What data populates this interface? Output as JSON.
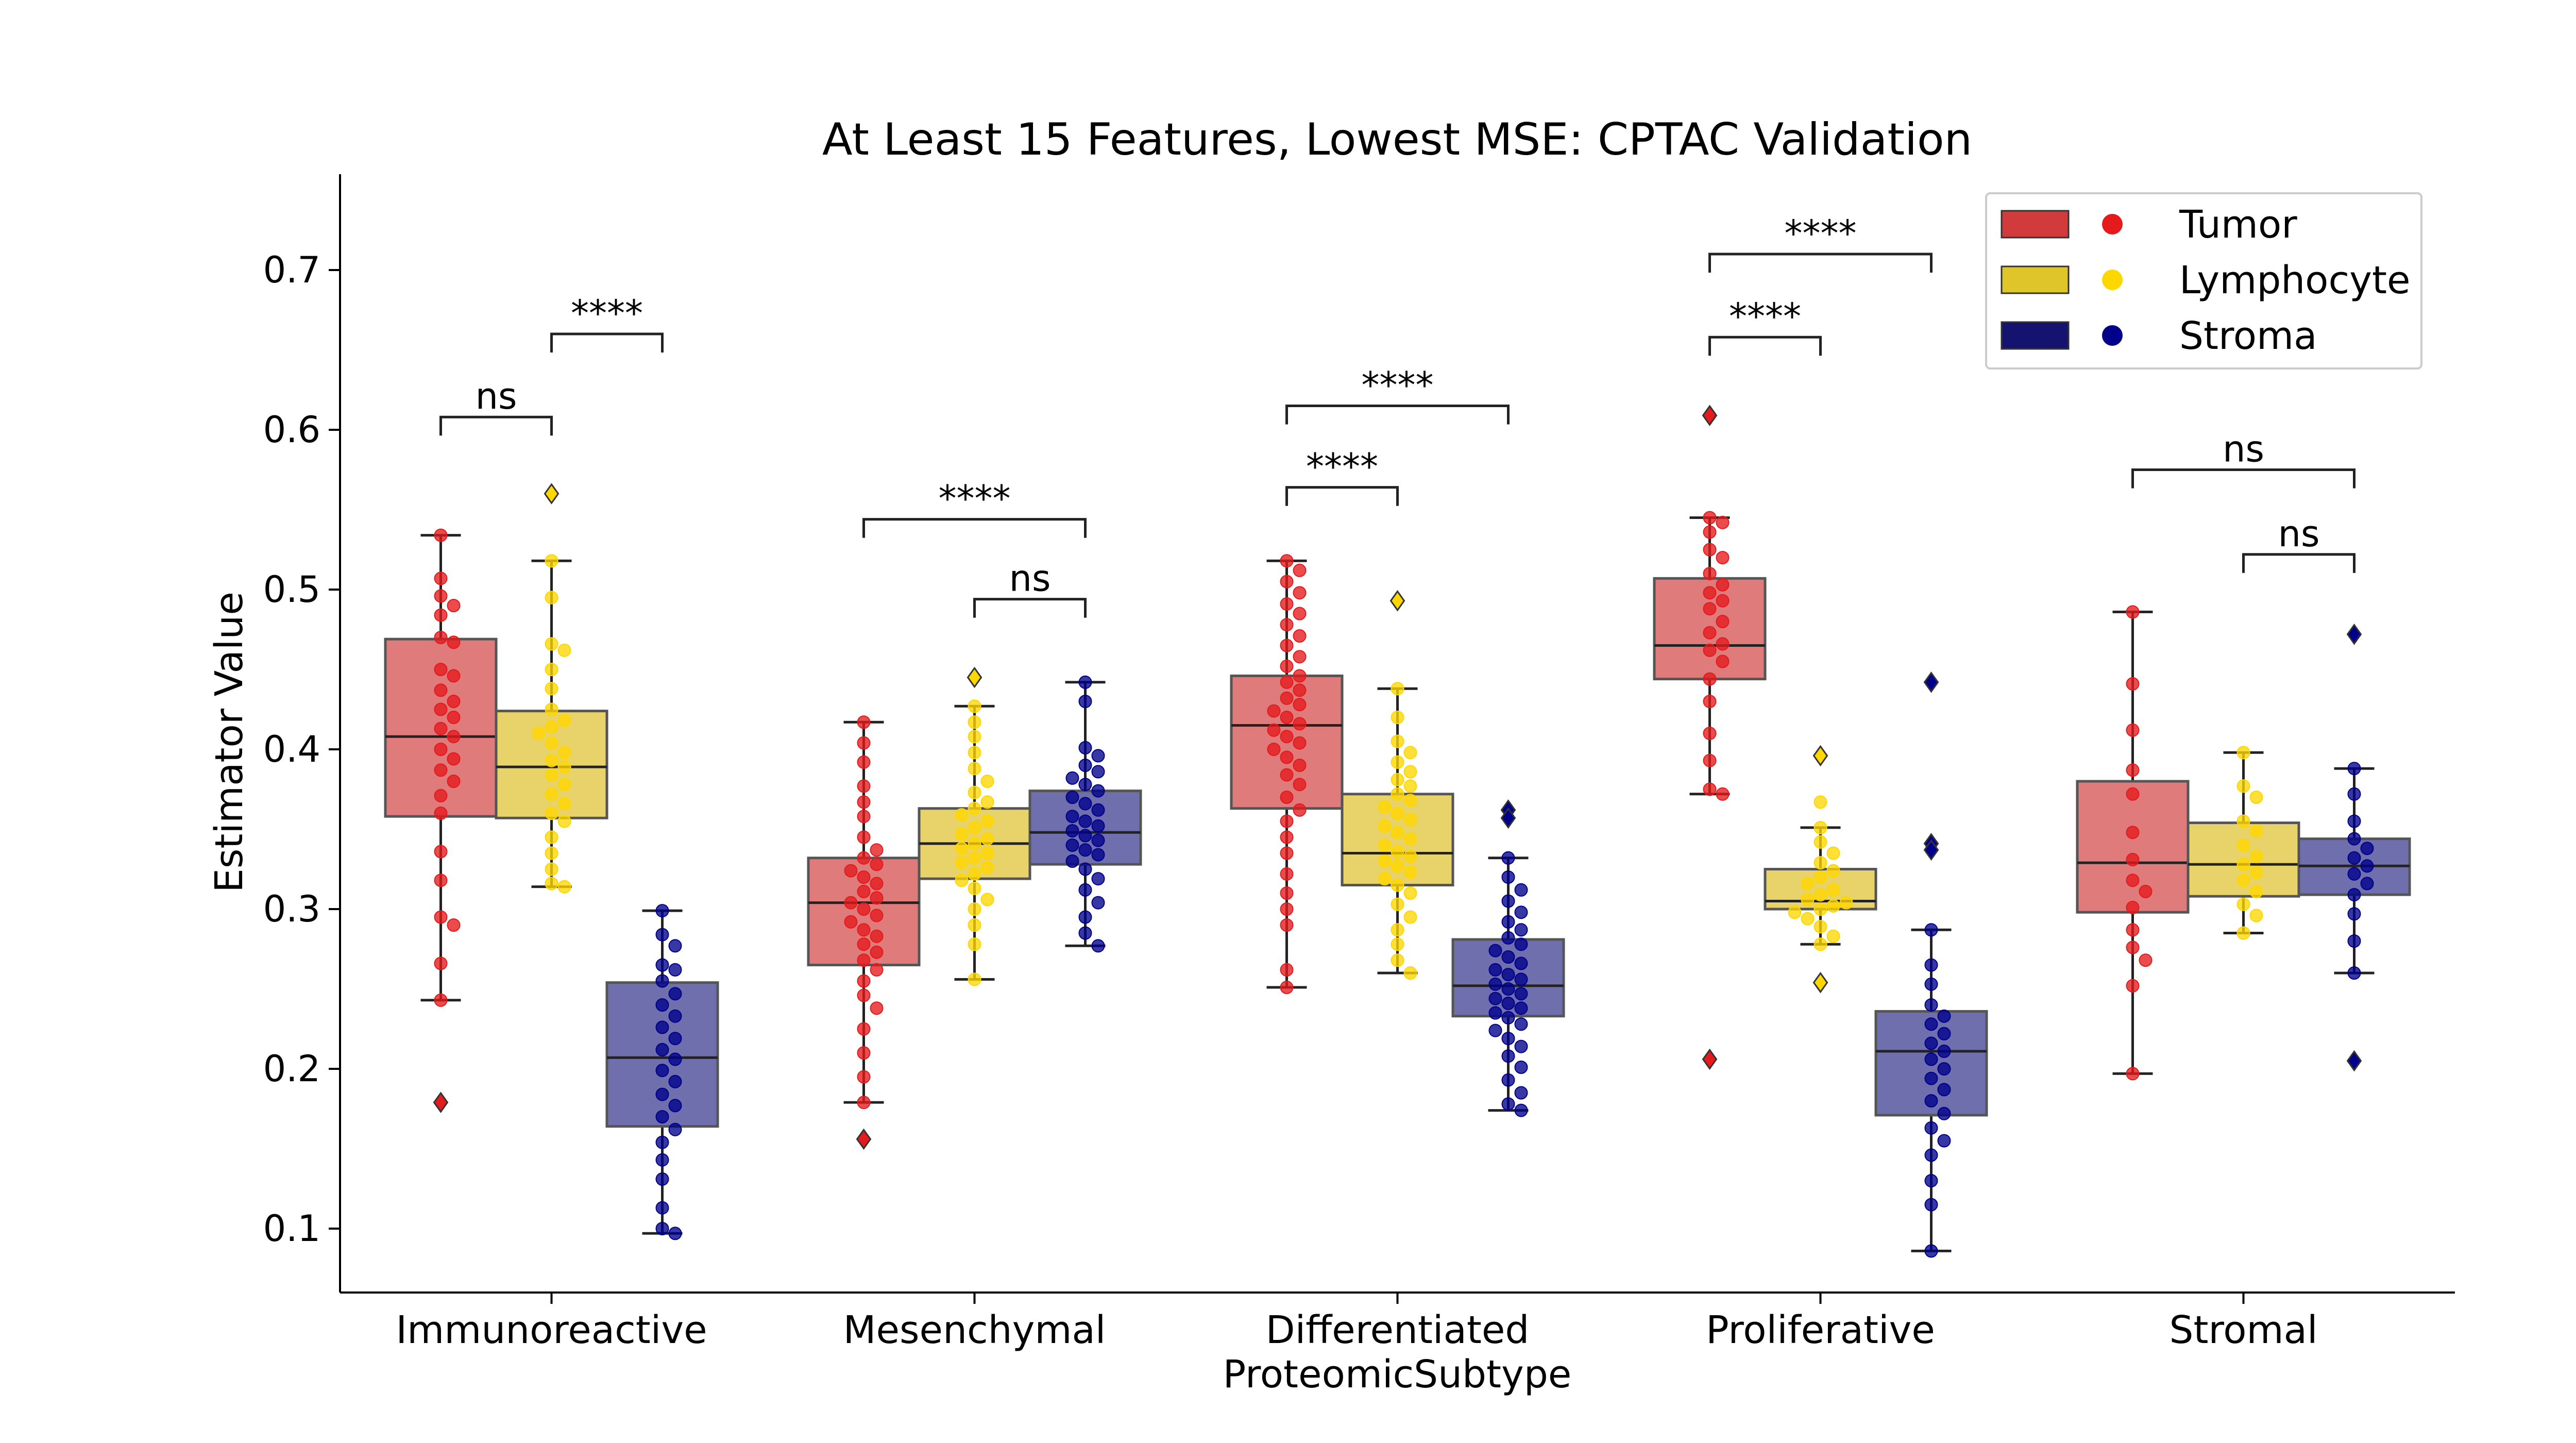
{
  "chart_data": {
    "type": "box",
    "title": "At Least 15 Features, Lowest MSE: CPTAC Validation",
    "xlabel": "ProteomicSubtype",
    "ylabel": "Estimator Value",
    "ylim": [
      0.06,
      0.76
    ],
    "yticks": [
      0.1,
      0.2,
      0.3,
      0.4,
      0.5,
      0.6,
      0.7
    ],
    "ytick_labels": [
      "0.1",
      "0.2",
      "0.3",
      "0.4",
      "0.5",
      "0.6",
      "0.7"
    ],
    "categories": [
      "Immunoreactive",
      "Mesenchymal",
      "Differentiated",
      "Proliferative",
      "Stromal"
    ],
    "legend_placement": "top-right",
    "grid": false,
    "series": [
      {
        "name": "Tumor",
        "box_color": "#e07b7b",
        "point_color": "#e41a1c",
        "boxes": [
          {
            "q1": 0.358,
            "median": 0.408,
            "q3": 0.469,
            "whisker_low": 0.243,
            "whisker_high": 0.534,
            "outliers": [
              0.179
            ],
            "points": [
              0.534,
              0.507,
              0.496,
              0.49,
              0.484,
              0.47,
              0.467,
              0.45,
              0.446,
              0.437,
              0.43,
              0.425,
              0.42,
              0.413,
              0.408,
              0.4,
              0.394,
              0.387,
              0.38,
              0.371,
              0.36,
              0.336,
              0.318,
              0.295,
              0.29,
              0.266,
              0.243
            ]
          },
          {
            "q1": 0.265,
            "median": 0.304,
            "q3": 0.332,
            "whisker_low": 0.179,
            "whisker_high": 0.417,
            "outliers": [
              0.156
            ],
            "points": [
              0.417,
              0.404,
              0.392,
              0.377,
              0.367,
              0.358,
              0.345,
              0.337,
              0.332,
              0.328,
              0.324,
              0.32,
              0.316,
              0.311,
              0.307,
              0.304,
              0.3,
              0.296,
              0.292,
              0.287,
              0.283,
              0.278,
              0.273,
              0.268,
              0.262,
              0.255,
              0.246,
              0.238,
              0.225,
              0.21,
              0.195,
              0.179
            ]
          },
          {
            "q1": 0.363,
            "median": 0.415,
            "q3": 0.446,
            "whisker_low": 0.251,
            "whisker_high": 0.518,
            "outliers": [],
            "points": [
              0.518,
              0.512,
              0.505,
              0.498,
              0.491,
              0.485,
              0.478,
              0.471,
              0.465,
              0.458,
              0.452,
              0.446,
              0.442,
              0.437,
              0.432,
              0.428,
              0.424,
              0.42,
              0.416,
              0.412,
              0.408,
              0.404,
              0.4,
              0.395,
              0.39,
              0.384,
              0.378,
              0.37,
              0.362,
              0.355,
              0.345,
              0.335,
              0.322,
              0.31,
              0.3,
              0.29,
              0.262,
              0.251
            ]
          },
          {
            "q1": 0.444,
            "median": 0.465,
            "q3": 0.507,
            "whisker_low": 0.372,
            "whisker_high": 0.545,
            "outliers": [
              0.609,
              0.206
            ],
            "points": [
              0.545,
              0.542,
              0.536,
              0.525,
              0.52,
              0.51,
              0.503,
              0.498,
              0.493,
              0.488,
              0.48,
              0.473,
              0.466,
              0.462,
              0.455,
              0.444,
              0.43,
              0.41,
              0.393,
              0.375,
              0.372
            ]
          },
          {
            "q1": 0.298,
            "median": 0.329,
            "q3": 0.38,
            "whisker_low": 0.197,
            "whisker_high": 0.486,
            "outliers": [],
            "points": [
              0.486,
              0.441,
              0.412,
              0.387,
              0.372,
              0.348,
              0.331,
              0.318,
              0.311,
              0.301,
              0.287,
              0.276,
              0.268,
              0.252,
              0.197
            ]
          }
        ]
      },
      {
        "name": "Lymphocyte",
        "box_color": "#e8d36a",
        "point_color": "#ffd700",
        "boxes": [
          {
            "q1": 0.357,
            "median": 0.389,
            "q3": 0.424,
            "whisker_low": 0.314,
            "whisker_high": 0.518,
            "outliers": [
              0.56
            ],
            "points": [
              0.518,
              0.495,
              0.466,
              0.462,
              0.45,
              0.438,
              0.425,
              0.418,
              0.414,
              0.41,
              0.404,
              0.398,
              0.393,
              0.389,
              0.384,
              0.378,
              0.372,
              0.366,
              0.36,
              0.355,
              0.345,
              0.335,
              0.325,
              0.316,
              0.314
            ]
          },
          {
            "q1": 0.319,
            "median": 0.341,
            "q3": 0.363,
            "whisker_low": 0.256,
            "whisker_high": 0.427,
            "outliers": [
              0.445
            ],
            "points": [
              0.427,
              0.417,
              0.408,
              0.398,
              0.388,
              0.38,
              0.373,
              0.367,
              0.363,
              0.359,
              0.355,
              0.351,
              0.347,
              0.344,
              0.341,
              0.338,
              0.335,
              0.332,
              0.329,
              0.326,
              0.322,
              0.318,
              0.313,
              0.306,
              0.3,
              0.29,
              0.278,
              0.256
            ]
          },
          {
            "q1": 0.315,
            "median": 0.335,
            "q3": 0.372,
            "whisker_low": 0.26,
            "whisker_high": 0.438,
            "outliers": [
              0.493
            ],
            "points": [
              0.438,
              0.42,
              0.405,
              0.398,
              0.392,
              0.386,
              0.381,
              0.377,
              0.372,
              0.368,
              0.364,
              0.36,
              0.356,
              0.352,
              0.348,
              0.344,
              0.34,
              0.336,
              0.333,
              0.33,
              0.327,
              0.323,
              0.319,
              0.315,
              0.31,
              0.303,
              0.295,
              0.287,
              0.278,
              0.268,
              0.26
            ]
          },
          {
            "q1": 0.3,
            "median": 0.305,
            "q3": 0.325,
            "whisker_low": 0.278,
            "whisker_high": 0.351,
            "outliers": [
              0.396,
              0.254
            ],
            "points": [
              0.351,
              0.342,
              0.335,
              0.329,
              0.324,
              0.32,
              0.316,
              0.312,
              0.309,
              0.306,
              0.304,
              0.302,
              0.3,
              0.298,
              0.294,
              0.289,
              0.283,
              0.278,
              0.367
            ]
          },
          {
            "q1": 0.308,
            "median": 0.328,
            "q3": 0.354,
            "whisker_low": 0.285,
            "whisker_high": 0.398,
            "outliers": [],
            "points": [
              0.398,
              0.377,
              0.37,
              0.355,
              0.349,
              0.34,
              0.333,
              0.328,
              0.323,
              0.318,
              0.311,
              0.303,
              0.296,
              0.285
            ]
          }
        ]
      },
      {
        "name": "Stroma",
        "box_color": "#6f6fae",
        "point_color": "#00008b",
        "boxes": [
          {
            "q1": 0.164,
            "median": 0.207,
            "q3": 0.254,
            "whisker_low": 0.097,
            "whisker_high": 0.299,
            "outliers": [],
            "points": [
              0.299,
              0.284,
              0.277,
              0.265,
              0.262,
              0.255,
              0.247,
              0.24,
              0.233,
              0.226,
              0.219,
              0.212,
              0.206,
              0.199,
              0.192,
              0.184,
              0.177,
              0.17,
              0.162,
              0.154,
              0.143,
              0.131,
              0.113,
              0.1,
              0.097
            ]
          },
          {
            "q1": 0.328,
            "median": 0.348,
            "q3": 0.374,
            "whisker_low": 0.277,
            "whisker_high": 0.442,
            "outliers": [],
            "points": [
              0.442,
              0.43,
              0.401,
              0.396,
              0.39,
              0.386,
              0.382,
              0.378,
              0.374,
              0.37,
              0.366,
              0.362,
              0.358,
              0.355,
              0.352,
              0.349,
              0.346,
              0.343,
              0.34,
              0.337,
              0.334,
              0.33,
              0.325,
              0.319,
              0.312,
              0.304,
              0.295,
              0.285,
              0.277
            ]
          },
          {
            "q1": 0.233,
            "median": 0.252,
            "q3": 0.281,
            "whisker_low": 0.174,
            "whisker_high": 0.332,
            "outliers": [
              0.362,
              0.357
            ],
            "points": [
              0.332,
              0.32,
              0.312,
              0.305,
              0.298,
              0.292,
              0.287,
              0.282,
              0.278,
              0.274,
              0.27,
              0.266,
              0.262,
              0.259,
              0.256,
              0.253,
              0.25,
              0.247,
              0.244,
              0.241,
              0.238,
              0.235,
              0.232,
              0.228,
              0.224,
              0.219,
              0.214,
              0.208,
              0.201,
              0.193,
              0.185,
              0.178,
              0.174
            ]
          },
          {
            "q1": 0.171,
            "median": 0.211,
            "q3": 0.236,
            "whisker_low": 0.086,
            "whisker_high": 0.287,
            "outliers": [
              0.442,
              0.341,
              0.337
            ],
            "points": [
              0.287,
              0.265,
              0.253,
              0.24,
              0.233,
              0.228,
              0.222,
              0.216,
              0.211,
              0.206,
              0.2,
              0.194,
              0.187,
              0.18,
              0.172,
              0.163,
              0.155,
              0.146,
              0.13,
              0.115,
              0.086
            ]
          },
          {
            "q1": 0.309,
            "median": 0.327,
            "q3": 0.344,
            "whisker_low": 0.26,
            "whisker_high": 0.388,
            "outliers": [
              0.472,
              0.205
            ],
            "points": [
              0.388,
              0.372,
              0.355,
              0.344,
              0.338,
              0.332,
              0.327,
              0.322,
              0.316,
              0.309,
              0.297,
              0.28,
              0.26
            ]
          }
        ]
      }
    ],
    "annotations": [
      {
        "category": 0,
        "from": "Tumor",
        "to": "Lymphocyte",
        "label": "ns",
        "y": 0.608
      },
      {
        "category": 0,
        "from": "Lymphocyte",
        "to": "Stroma",
        "label": "****",
        "y": 0.66
      },
      {
        "category": 1,
        "from": "Tumor",
        "to": "Stroma",
        "label": "****",
        "y": 0.544
      },
      {
        "category": 1,
        "from": "Lymphocyte",
        "to": "Stroma",
        "label": "ns",
        "y": 0.494
      },
      {
        "category": 2,
        "from": "Tumor",
        "to": "Lymphocyte",
        "label": "****",
        "y": 0.564
      },
      {
        "category": 2,
        "from": "Tumor",
        "to": "Stroma",
        "label": "****",
        "y": 0.615
      },
      {
        "category": 3,
        "from": "Tumor",
        "to": "Lymphocyte",
        "label": "****",
        "y": 0.658
      },
      {
        "category": 3,
        "from": "Tumor",
        "to": "Stroma",
        "label": "****",
        "y": 0.71
      },
      {
        "category": 4,
        "from": "Tumor",
        "to": "Stroma",
        "label": "ns",
        "y": 0.575
      },
      {
        "category": 4,
        "from": "Lymphocyte",
        "to": "Stroma",
        "label": "ns",
        "y": 0.522
      }
    ]
  }
}
